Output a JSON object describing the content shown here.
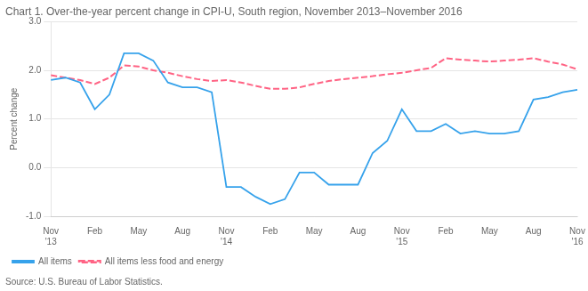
{
  "chart_data": {
    "type": "line",
    "title": "Chart 1. Over-the-year percent change in CPI-U, South region, November 2013–November 2016",
    "y_label": "Percent change",
    "annotations": [
      "Source: U.S. Bureau of Labor Statistics."
    ],
    "categories": [
      "Nov\n'13",
      null,
      null,
      "Feb",
      null,
      null,
      "May",
      null,
      null,
      "Aug",
      null,
      null,
      "Nov\n'14",
      null,
      null,
      "Feb",
      null,
      null,
      "May",
      null,
      null,
      "Aug",
      null,
      null,
      "Nov\n'15",
      null,
      null,
      "Feb",
      null,
      null,
      "May",
      null,
      null,
      "Aug",
      null,
      null,
      "Nov\n'16"
    ],
    "series": [
      {
        "name": "All items",
        "line_style": "solid",
        "values": [
          1.8,
          1.85,
          1.75,
          1.2,
          1.5,
          2.35,
          2.35,
          2.2,
          1.75,
          1.65,
          1.65,
          1.55,
          -0.4,
          -0.4,
          -0.6,
          -0.75,
          -0.65,
          -0.1,
          -0.1,
          -0.35,
          -0.35,
          -0.35,
          0.3,
          0.55,
          1.2,
          0.75,
          0.75,
          0.9,
          0.7,
          0.75,
          0.7,
          0.7,
          0.75,
          1.4,
          1.45,
          1.55,
          1.6
        ]
      },
      {
        "name": "All items less food and energy",
        "line_style": "dashed",
        "values": [
          1.9,
          1.85,
          1.8,
          1.72,
          1.85,
          2.1,
          2.08,
          2.0,
          1.95,
          1.88,
          1.82,
          1.78,
          1.8,
          1.75,
          1.68,
          1.62,
          1.62,
          1.65,
          1.72,
          1.78,
          1.82,
          1.85,
          1.88,
          1.92,
          1.95,
          2.0,
          2.05,
          2.25,
          2.22,
          2.2,
          2.18,
          2.2,
          2.22,
          2.25,
          2.18,
          2.12,
          2.02
        ]
      }
    ],
    "ylim": [
      -1.0,
      3.0
    ],
    "yticks": [
      {
        "value": -1.0,
        "label": "-1.0"
      },
      {
        "value": 0.0,
        "label": "0.0"
      },
      {
        "value": 1.0,
        "label": "1.0"
      },
      {
        "value": 2.0,
        "label": "2.0"
      },
      {
        "value": 3.0,
        "label": "3.0"
      }
    ],
    "grid": true,
    "legend": "lower left"
  }
}
